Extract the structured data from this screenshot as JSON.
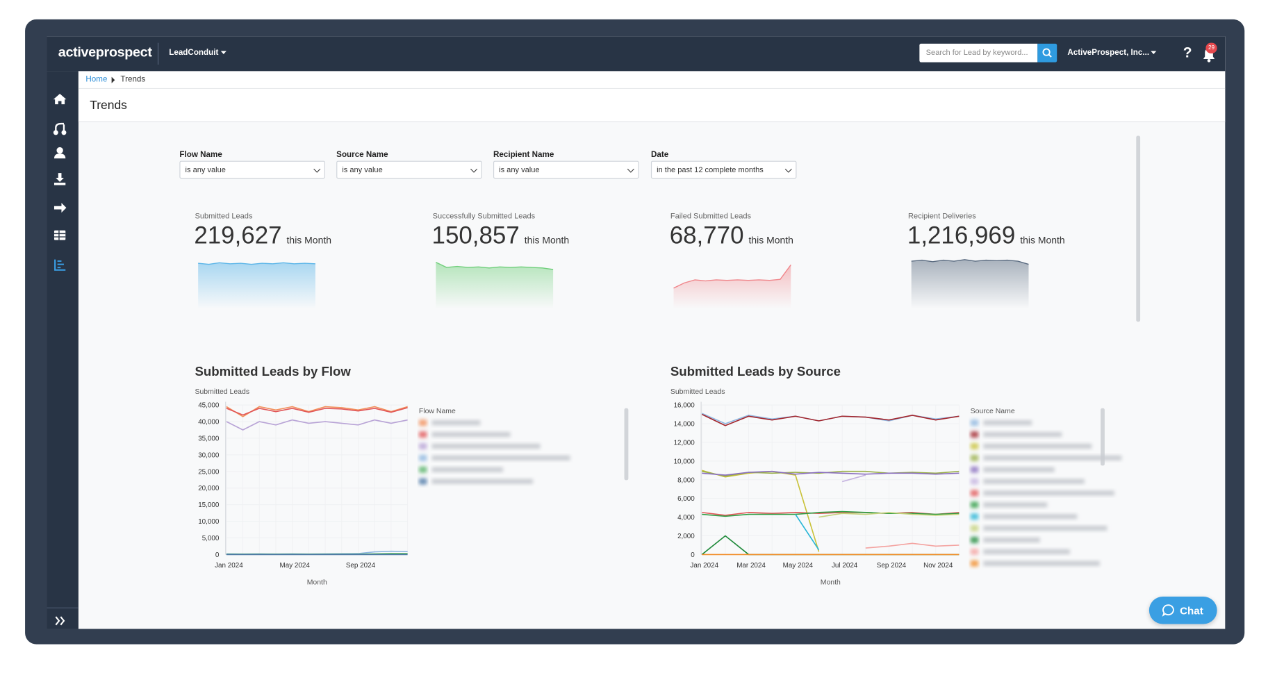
{
  "header": {
    "logo": "activeprospect",
    "product": "LeadConduit",
    "search_placeholder": "Search for Lead by keyword...",
    "account": "ActiveProspect, Inc...",
    "help": "?",
    "notifications": "29"
  },
  "breadcrumb": [
    "Home",
    "Trends"
  ],
  "page_title": "Trends",
  "filters": [
    {
      "label": "Flow Name",
      "value": "is any value"
    },
    {
      "label": "Source Name",
      "value": "is any value"
    },
    {
      "label": "Recipient Name",
      "value": "is any value"
    },
    {
      "label": "Date",
      "value": "in the past 12 complete months"
    }
  ],
  "kpis": [
    {
      "label": "Submitted Leads",
      "value": "219,627",
      "suffix": "this Month",
      "color": "#5bb5e8",
      "ylim": [
        0,
        100
      ],
      "sparkline": [
        88,
        86,
        89,
        87,
        88,
        86,
        88,
        87,
        89,
        87,
        88,
        87
      ]
    },
    {
      "label": "Successfully Submitted Leads",
      "value": "150,857",
      "suffix": "this Month",
      "color": "#6fcf7a",
      "ylim": [
        0,
        100
      ],
      "sparkline": [
        90,
        80,
        82,
        80,
        81,
        79,
        81,
        80,
        81,
        80,
        79,
        76
      ]
    },
    {
      "label": "Failed Submitted Leads",
      "value": "68,770",
      "suffix": "this Month",
      "color": "#f0868b",
      "ylim": [
        0,
        100
      ],
      "sparkline": [
        40,
        50,
        56,
        54,
        56,
        55,
        56,
        55,
        56,
        55,
        57,
        85
      ]
    },
    {
      "label": "Recipient Deliveries",
      "value": "1,216,969",
      "suffix": "this Month",
      "color": "#5a6b80",
      "ylim": [
        0,
        100
      ],
      "sparkline": [
        92,
        94,
        91,
        94,
        92,
        95,
        92,
        94,
        93,
        94,
        92,
        86
      ]
    }
  ],
  "chat": "Chat",
  "chart_data": [
    {
      "type": "line",
      "title": "Submitted Leads by Flow",
      "y_label": "Submitted Leads",
      "x_label": "Month",
      "legend_title": "Flow Name",
      "categories": [
        "Jan 2024",
        null,
        null,
        null,
        "May 2024",
        null,
        null,
        null,
        "Sep 2024",
        null,
        null,
        null
      ],
      "ylim": [
        0,
        45000
      ],
      "yticks": [
        {
          "value": 0,
          "label": "0"
        },
        {
          "value": 5000,
          "label": "5,000"
        },
        {
          "value": 10000,
          "label": "10,000"
        },
        {
          "value": 15000,
          "label": "15,000"
        },
        {
          "value": 20000,
          "label": "20,000"
        },
        {
          "value": 25000,
          "label": "25,000"
        },
        {
          "value": 30000,
          "label": "30,000"
        },
        {
          "value": 35000,
          "label": "35,000"
        },
        {
          "value": 40000,
          "label": "40,000"
        },
        {
          "value": 45000,
          "label": "45,000"
        }
      ],
      "grid": true,
      "series": [
        {
          "color": "#f28e5a",
          "values": [
            44500,
            41500,
            44500,
            43500,
            44500,
            43000,
            44500,
            44200,
            43500,
            44500,
            43000,
            44500
          ]
        },
        {
          "color": "#e15759",
          "values": [
            44000,
            42000,
            44000,
            43000,
            44000,
            42800,
            44000,
            43800,
            43200,
            44000,
            42800,
            44200
          ]
        },
        {
          "color": "#b8a3d6",
          "values": [
            40000,
            37500,
            40000,
            39000,
            40500,
            39500,
            40000,
            39500,
            39000,
            40500,
            39500,
            40500
          ]
        },
        {
          "color": "#8fb7e0",
          "values": [
            200,
            150,
            200,
            150,
            200,
            150,
            200,
            250,
            300,
            800,
            1000,
            900
          ]
        },
        {
          "color": "#59b36b",
          "values": [
            100,
            100,
            100,
            100,
            100,
            100,
            100,
            100,
            100,
            200,
            300,
            300
          ]
        },
        {
          "color": "#4e79a7",
          "values": [
            0,
            0,
            0,
            0,
            0,
            0,
            0,
            0,
            0,
            0,
            0,
            0
          ]
        }
      ]
    },
    {
      "type": "line",
      "title": "Submitted Leads by Source",
      "y_label": "Submitted Leads",
      "x_label": "Month",
      "legend_title": "Source Name",
      "categories": [
        "Jan 2024",
        null,
        "Mar 2024",
        null,
        "May 2024",
        null,
        "Jul 2024",
        null,
        "Sep 2024",
        null,
        "Nov 2024",
        null
      ],
      "ylim": [
        0,
        16000
      ],
      "yticks": [
        0,
        {
          "value": 2000,
          "label": "2,000"
        },
        {
          "value": 4000,
          "label": "4,000"
        },
        {
          "value": 6000,
          "label": "6,000"
        },
        {
          "value": 8000,
          "label": "8,000"
        },
        {
          "value": 10000,
          "label": "10,000"
        },
        {
          "value": 12000,
          "label": "12,000"
        },
        {
          "value": 14000,
          "label": "14,000"
        },
        {
          "value": 16000,
          "label": "16,000"
        }
      ],
      "grid": true,
      "series": [
        {
          "color": "#8fb7e0",
          "values": [
            15100,
            14000,
            14900,
            14500,
            14800,
            14300,
            14800,
            14700,
            14300,
            14900,
            14500,
            14800
          ]
        },
        {
          "color": "#a3262d",
          "values": [
            15000,
            13800,
            14800,
            14400,
            14800,
            14300,
            14800,
            14700,
            14400,
            14900,
            14400,
            14800
          ]
        },
        {
          "color": "#c9c23a",
          "values": [
            9000,
            8300,
            8700,
            8900,
            8500,
            300,
            null,
            null,
            null,
            null,
            null,
            null
          ]
        },
        {
          "color": "#9ab04a",
          "values": [
            8900,
            8400,
            8800,
            8700,
            8800,
            8700,
            8900,
            8900,
            8700,
            8800,
            8700,
            8900
          ]
        },
        {
          "color": "#8a6fbf",
          "values": [
            8700,
            8500,
            8800,
            8900,
            8600,
            8800,
            8700,
            8600,
            8700,
            8700,
            8600,
            8700
          ]
        },
        {
          "color": "#c5b3e0",
          "values": [
            null,
            null,
            null,
            null,
            null,
            null,
            7800,
            8500,
            null,
            null,
            null,
            null
          ]
        },
        {
          "color": "#e15759",
          "values": [
            4500,
            4200,
            4500,
            4400,
            4500,
            4400,
            4500,
            4500,
            4400,
            4500,
            4300,
            4500
          ]
        },
        {
          "color": "#2f9e44",
          "values": [
            4300,
            4100,
            4300,
            4300,
            4300,
            4500,
            4600,
            4500,
            4400,
            4400,
            4300,
            4400
          ]
        },
        {
          "color": "#26b5d6",
          "values": [
            null,
            null,
            null,
            null,
            4300,
            500,
            null,
            null,
            null,
            null,
            null,
            null
          ]
        },
        {
          "color": "#c4d27a",
          "values": [
            null,
            null,
            null,
            null,
            null,
            4000,
            4400,
            4300,
            4500,
            4300,
            4200,
            4300
          ]
        },
        {
          "color": "#1f8a3a",
          "values": [
            0,
            2000,
            0,
            0,
            0,
            0,
            0,
            0,
            0,
            0,
            0,
            0
          ]
        },
        {
          "color": "#f4a3a0",
          "values": [
            null,
            null,
            null,
            null,
            null,
            null,
            null,
            700,
            900,
            1200,
            900,
            1000
          ]
        },
        {
          "color": "#f28e2b",
          "values": [
            0,
            0,
            0,
            0,
            0,
            0,
            0,
            0,
            0,
            0,
            0,
            0
          ]
        }
      ]
    }
  ]
}
